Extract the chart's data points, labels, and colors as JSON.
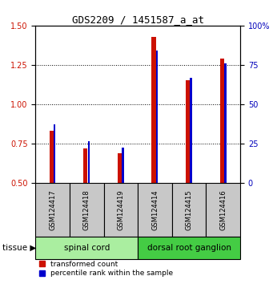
{
  "title": "GDS2209 / 1451587_a_at",
  "samples": [
    "GSM124417",
    "GSM124418",
    "GSM124419",
    "GSM124414",
    "GSM124415",
    "GSM124416"
  ],
  "red_values": [
    0.83,
    0.72,
    0.69,
    1.43,
    1.15,
    1.29
  ],
  "blue_values": [
    0.87,
    0.765,
    0.725,
    1.34,
    1.17,
    1.26
  ],
  "ylim_left": [
    0.5,
    1.5
  ],
  "ylim_right": [
    0,
    100
  ],
  "yticks_left": [
    0.5,
    0.75,
    1.0,
    1.25,
    1.5
  ],
  "yticks_right": [
    0,
    25,
    50,
    75,
    100
  ],
  "tissue_label": "tissue",
  "bar_color": "#CC1100",
  "blue_color": "#0000CC",
  "background_color": "#ffffff",
  "plot_bg_color": "#ffffff",
  "axis_color_left": "#CC1100",
  "axis_color_right": "#0000BB",
  "legend_red_label": "transformed count",
  "legend_blue_label": "percentile rank within the sample",
  "group1_label": "spinal cord",
  "group2_label": "dorsal root ganglion",
  "group1_color": "#AAEEA0",
  "group2_color": "#44CC44",
  "sample_box_color": "#C8C8C8",
  "red_bar_width": 0.12,
  "blue_bar_width": 0.06
}
